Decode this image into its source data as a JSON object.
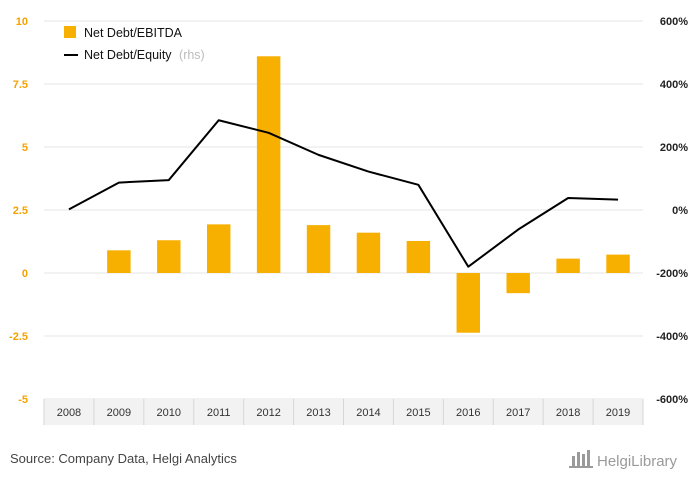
{
  "chart_data": {
    "type": "bar",
    "categories": [
      "2008",
      "2009",
      "2010",
      "2011",
      "2012",
      "2013",
      "2014",
      "2015",
      "2016",
      "2017",
      "2018",
      "2019"
    ],
    "series": [
      {
        "name": "Net Debt/EBITDA",
        "type": "bar",
        "axis": "left",
        "color": "#f7b000",
        "values": [
          null,
          0.9,
          1.3,
          1.93,
          8.6,
          1.9,
          1.6,
          1.27,
          -2.37,
          -0.8,
          0.57,
          0.73
        ]
      },
      {
        "name": "Net Debt/Equity",
        "type": "line",
        "axis": "right",
        "color": "#000000",
        "values": [
          2,
          87,
          95,
          285,
          245,
          175,
          122,
          80,
          -180,
          -62,
          38,
          33
        ]
      }
    ],
    "left_axis": {
      "min": -5,
      "max": 10,
      "ticks": [
        -5,
        -2.5,
        0,
        2.5,
        5,
        7.5,
        10
      ],
      "tick_labels": [
        "-5",
        "-2.5",
        "0",
        "2.5",
        "5",
        "7.5",
        "10"
      ]
    },
    "right_axis": {
      "min": -600,
      "max": 600,
      "ticks": [
        -600,
        -400,
        -200,
        0,
        200,
        400,
        600
      ],
      "tick_labels": [
        "-600%",
        "-400%",
        "-200%",
        "0%",
        "200%",
        "400%",
        "600%"
      ]
    },
    "legend": {
      "placement": "top-left",
      "items": [
        {
          "label": "Net Debt/EBITDA",
          "suffix": "",
          "marker": "square",
          "color": "#f7b000"
        },
        {
          "label": "Net Debt/Equity",
          "suffix": "(rhs)",
          "marker": "line",
          "color": "#000000"
        }
      ]
    },
    "grid": true,
    "title": "",
    "xlabel": "",
    "ylabel": ""
  },
  "footer": {
    "source": "Source: Company Data, Helgi Analytics",
    "brand": "HelgiLibrary"
  },
  "colors": {
    "left_tick": "#f5a200",
    "grid": "#e6e6e6",
    "axis_band": "#f2f2f2"
  }
}
